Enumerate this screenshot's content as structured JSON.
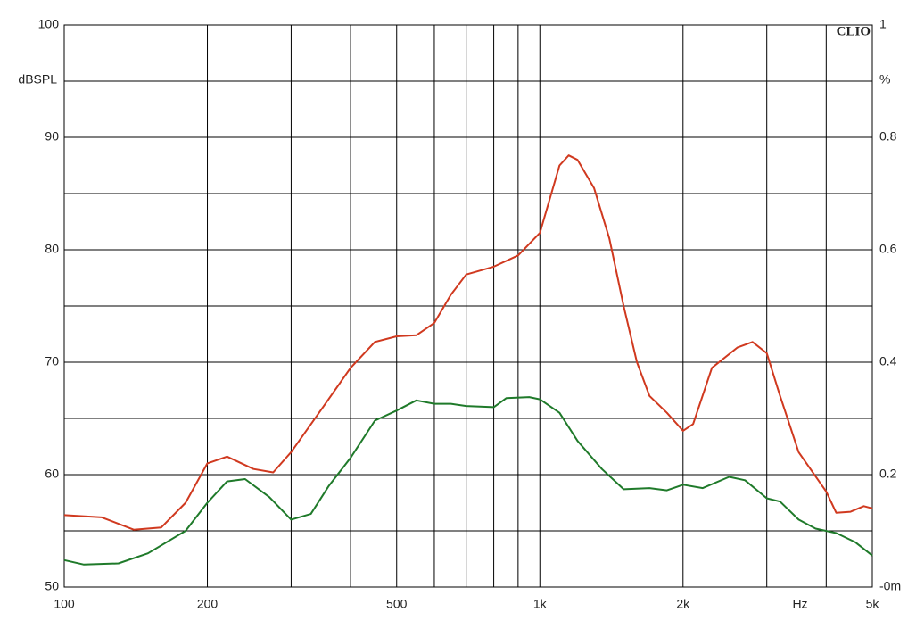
{
  "chart_data": {
    "type": "line",
    "brand": "CLIO",
    "y_label": "dBSPL",
    "y2_label": "%",
    "x_label": "Hz",
    "xscale": "log",
    "xlim": [
      100,
      5000
    ],
    "xticks": [
      {
        "value": 100,
        "label": "100"
      },
      {
        "value": 200,
        "label": "200"
      },
      {
        "value": 500,
        "label": "500"
      },
      {
        "value": 1000,
        "label": "1k"
      },
      {
        "value": 2000,
        "label": "2k"
      },
      {
        "value": 5000,
        "label": "5k"
      }
    ],
    "xgrid": [
      200,
      300,
      400,
      500,
      600,
      700,
      800,
      900,
      1000,
      2000,
      3000,
      4000
    ],
    "ylim": [
      50,
      100
    ],
    "yticks": [
      50,
      60,
      70,
      80,
      90,
      100
    ],
    "ygrid": [
      55,
      60,
      65,
      70,
      75,
      80,
      85,
      90,
      95
    ],
    "y2lim": [
      0,
      1
    ],
    "y2ticks": [
      {
        "value": 0,
        "label": "-0m"
      },
      0.2,
      0.4,
      0.6,
      0.8,
      1
    ],
    "series": [
      {
        "color": "#d0391f",
        "x": [
          100,
          120,
          140,
          160,
          180,
          200,
          220,
          250,
          275,
          300,
          350,
          400,
          450,
          500,
          550,
          600,
          650,
          700,
          800,
          900,
          1000,
          1100,
          1150,
          1200,
          1300,
          1400,
          1500,
          1600,
          1700,
          1850,
          2000,
          2100,
          2300,
          2600,
          2800,
          3000,
          3200,
          3500,
          4000,
          4200,
          4500,
          4800,
          5000
        ],
        "values": [
          56.4,
          56.2,
          55.1,
          55.3,
          57.5,
          61.0,
          61.6,
          60.5,
          60.2,
          62.0,
          66.0,
          69.5,
          71.8,
          72.3,
          72.4,
          73.5,
          76.0,
          77.8,
          78.5,
          79.5,
          81.5,
          87.5,
          88.4,
          88.0,
          85.5,
          81.0,
          75.0,
          70.0,
          67.0,
          65.5,
          63.9,
          64.5,
          69.5,
          71.3,
          71.8,
          70.8,
          67.0,
          62.0,
          58.5,
          56.6,
          56.7,
          57.2,
          57.0
        ]
      },
      {
        "color": "#1f7a2a",
        "x": [
          100,
          110,
          130,
          150,
          180,
          200,
          220,
          240,
          270,
          300,
          330,
          360,
          400,
          450,
          500,
          550,
          600,
          650,
          700,
          800,
          850,
          950,
          1000,
          1100,
          1200,
          1350,
          1500,
          1700,
          1850,
          2000,
          2200,
          2500,
          2700,
          3000,
          3200,
          3500,
          3800,
          4200,
          4600,
          5000
        ],
        "values": [
          52.4,
          52.0,
          52.1,
          53.0,
          55.0,
          57.5,
          59.4,
          59.6,
          58.0,
          56.0,
          56.5,
          59.0,
          61.5,
          64.8,
          65.7,
          66.6,
          66.3,
          66.3,
          66.1,
          66.0,
          66.8,
          66.9,
          66.7,
          65.5,
          63.0,
          60.5,
          58.7,
          58.8,
          58.6,
          59.1,
          58.8,
          59.8,
          59.5,
          57.9,
          57.6,
          56.0,
          55.2,
          54.8,
          54.0,
          52.8
        ]
      }
    ]
  }
}
